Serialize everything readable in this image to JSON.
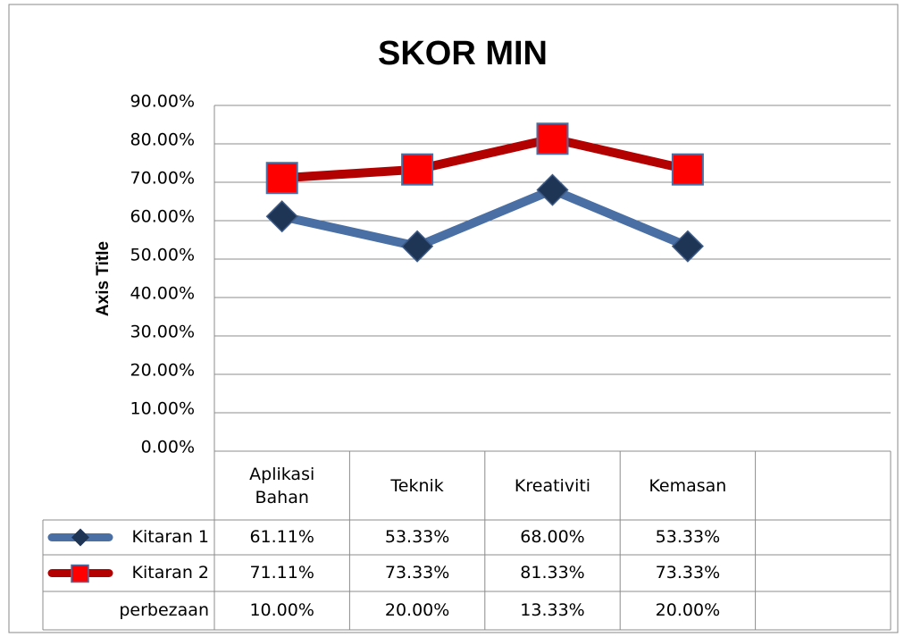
{
  "chart_data": {
    "type": "line",
    "title": "SKOR MIN",
    "y_label": "Axis Title",
    "categories": [
      "Aplikasi Bahan",
      "Teknik",
      "Kreativiti",
      "Kemasan",
      null
    ],
    "series": [
      {
        "name": "Kitaran 1",
        "color": "#4a6fa5",
        "marker": "diamond",
        "marker_color": "#1f3556",
        "values": [
          61.11,
          53.33,
          68.0,
          53.33,
          null
        ],
        "value_labels": [
          "61.11%",
          "53.33%",
          "68.00%",
          "53.33%",
          null
        ]
      },
      {
        "name": "Kitaran 2",
        "color": "#b30000",
        "marker": "square",
        "marker_color": "#ff0000",
        "values": [
          71.11,
          73.33,
          81.33,
          73.33,
          null
        ],
        "value_labels": [
          "71.11%",
          "73.33%",
          "81.33%",
          "73.33%",
          null
        ]
      },
      {
        "name": "perbezaan",
        "values": [
          10.0,
          20.0,
          13.33,
          20.0,
          null
        ],
        "value_labels": [
          "10.00%",
          "20.00%",
          "13.33%",
          "20.00%",
          null
        ]
      }
    ],
    "ylim": [
      0,
      90
    ],
    "yticks": [
      {
        "value": 0,
        "label": "0.00%"
      },
      {
        "value": 10,
        "label": "10.00%"
      },
      {
        "value": 20,
        "label": "20.00%"
      },
      {
        "value": 30,
        "label": "30.00%"
      },
      {
        "value": 40,
        "label": "40.00%"
      },
      {
        "value": 50,
        "label": "50.00%"
      },
      {
        "value": 60,
        "label": "60.00%"
      },
      {
        "value": 70,
        "label": "70.00%"
      },
      {
        "value": 80,
        "label": "80.00%"
      },
      {
        "value": 90,
        "label": "90.00%"
      }
    ],
    "grid": true,
    "data_table": true
  }
}
